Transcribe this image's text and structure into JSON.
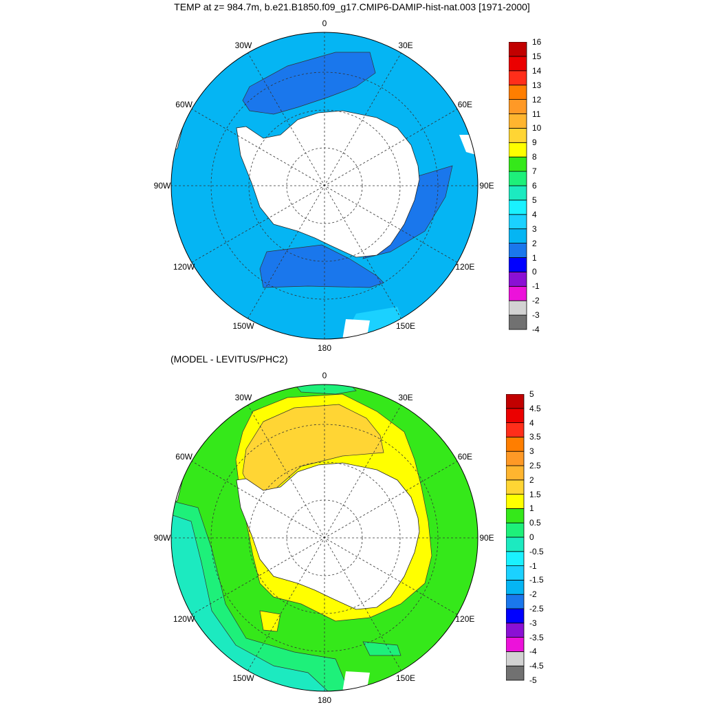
{
  "top_map": {
    "title": "TEMP at z= 984.7m, b.e21.B1850.f09_g17.CMIP6-DAMIP-hist-nat.003 [1971-2000]",
    "lon_labels": [
      "0",
      "30E",
      "60E",
      "90E",
      "120E",
      "150E",
      "180",
      "150W",
      "120W",
      "90W",
      "60W",
      "30W"
    ],
    "colorbar": {
      "colors": [
        "#717171",
        "#d2d2d2",
        "#ec12da",
        "#8b10d4",
        "#0000ff",
        "#1a77ec",
        "#05b5f3",
        "#1bd1ff",
        "#1af1ff",
        "#1ceac0",
        "#1ef07a",
        "#35e81a",
        "#ffff00",
        "#ffd534",
        "#ffb52f",
        "#ff9926",
        "#ff7e00",
        "#ff2e1a",
        "#eb0000",
        "#c10000"
      ],
      "labels": [
        "-4",
        "-3",
        "-2",
        "-1",
        "0",
        "1",
        "2",
        "3",
        "4",
        "5",
        "6",
        "7",
        "8",
        "9",
        "10",
        "11",
        "12",
        "13",
        "14",
        "15",
        "16"
      ]
    }
  },
  "bottom_map": {
    "title": "(MODEL - LEVITUS/PHC2)",
    "lon_labels": [
      "0",
      "30E",
      "60E",
      "90E",
      "120E",
      "150E",
      "180",
      "150W",
      "120W",
      "90W",
      "60W",
      "30W"
    ],
    "colorbar": {
      "colors": [
        "#717171",
        "#d2d2d2",
        "#ec12da",
        "#8b10d4",
        "#0000ff",
        "#1a77ec",
        "#05b5f3",
        "#1bd1ff",
        "#1af1ff",
        "#1ceac0",
        "#1ef07a",
        "#35e81a",
        "#ffff00",
        "#ffd534",
        "#ffb52f",
        "#ff9926",
        "#ff7e00",
        "#ff2e1a",
        "#eb0000",
        "#c10000"
      ],
      "labels": [
        "-5",
        "-4.5",
        "-4",
        "-3.5",
        "-3",
        "-2.5",
        "-2",
        "-1.5",
        "-1",
        "-0.5",
        "0",
        "0.5",
        "1",
        "1.5",
        "2",
        "2.5",
        "3",
        "3.5",
        "4",
        "4.5",
        "5"
      ]
    }
  }
}
